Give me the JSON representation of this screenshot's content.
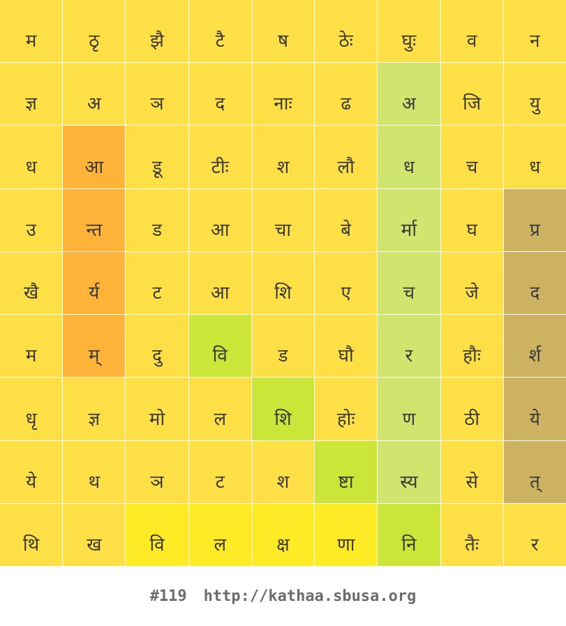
{
  "colors": {
    "y": "#ffdf46",
    "o": "#ffb338",
    "lg": "#cfe56d",
    "lime": "#cbe538",
    "tan": "#cdb262",
    "yb": "#feeb25"
  },
  "grid": [
    [
      {
        "t": "म",
        "c": "y"
      },
      {
        "t": "ठृ",
        "c": "y"
      },
      {
        "t": "झै",
        "c": "y"
      },
      {
        "t": "टै",
        "c": "y"
      },
      {
        "t": "ष",
        "c": "y"
      },
      {
        "t": "ठेः",
        "c": "y"
      },
      {
        "t": "घुः",
        "c": "y"
      },
      {
        "t": "व",
        "c": "y"
      },
      {
        "t": "न",
        "c": "y"
      }
    ],
    [
      {
        "t": "ज्ञ",
        "c": "y"
      },
      {
        "t": "अ",
        "c": "y"
      },
      {
        "t": "ञ",
        "c": "y"
      },
      {
        "t": "द",
        "c": "y"
      },
      {
        "t": "नाः",
        "c": "y"
      },
      {
        "t": "ढ",
        "c": "y"
      },
      {
        "t": "अ",
        "c": "lg"
      },
      {
        "t": "जि",
        "c": "y"
      },
      {
        "t": "यु",
        "c": "y"
      }
    ],
    [
      {
        "t": "ध",
        "c": "y"
      },
      {
        "t": "आ",
        "c": "o"
      },
      {
        "t": "डू",
        "c": "y"
      },
      {
        "t": "टीः",
        "c": "y"
      },
      {
        "t": "श",
        "c": "y"
      },
      {
        "t": "लौ",
        "c": "y"
      },
      {
        "t": "ध",
        "c": "lg"
      },
      {
        "t": "च",
        "c": "y"
      },
      {
        "t": "ध",
        "c": "y"
      }
    ],
    [
      {
        "t": "उ",
        "c": "y"
      },
      {
        "t": "न्त",
        "c": "o"
      },
      {
        "t": "ड",
        "c": "y"
      },
      {
        "t": "आ",
        "c": "y"
      },
      {
        "t": "चा",
        "c": "y"
      },
      {
        "t": "बे",
        "c": "y"
      },
      {
        "t": "र्मा",
        "c": "lg"
      },
      {
        "t": "घ",
        "c": "y"
      },
      {
        "t": "प्र",
        "c": "tan"
      }
    ],
    [
      {
        "t": "खै",
        "c": "y"
      },
      {
        "t": "र्य",
        "c": "o"
      },
      {
        "t": "ट",
        "c": "y"
      },
      {
        "t": "आ",
        "c": "y"
      },
      {
        "t": "शि",
        "c": "y"
      },
      {
        "t": "ए",
        "c": "y"
      },
      {
        "t": "च",
        "c": "lg"
      },
      {
        "t": "जे",
        "c": "y"
      },
      {
        "t": "द",
        "c": "tan"
      }
    ],
    [
      {
        "t": "म",
        "c": "y"
      },
      {
        "t": "म्",
        "c": "o"
      },
      {
        "t": "दु",
        "c": "y"
      },
      {
        "t": "वि",
        "c": "lime"
      },
      {
        "t": "ड",
        "c": "y"
      },
      {
        "t": "घौ",
        "c": "y"
      },
      {
        "t": "र",
        "c": "lg"
      },
      {
        "t": "हौः",
        "c": "y"
      },
      {
        "t": "र्श",
        "c": "tan"
      }
    ],
    [
      {
        "t": "धृ",
        "c": "y"
      },
      {
        "t": "ज्ञ",
        "c": "y"
      },
      {
        "t": "मो",
        "c": "y"
      },
      {
        "t": "ल",
        "c": "y"
      },
      {
        "t": "शि",
        "c": "lime"
      },
      {
        "t": "होः",
        "c": "y"
      },
      {
        "t": "ण",
        "c": "lg"
      },
      {
        "t": "ठी",
        "c": "y"
      },
      {
        "t": "ये",
        "c": "tan"
      }
    ],
    [
      {
        "t": "ये",
        "c": "y"
      },
      {
        "t": "थ",
        "c": "y"
      },
      {
        "t": "ञ",
        "c": "y"
      },
      {
        "t": "ट",
        "c": "y"
      },
      {
        "t": "श",
        "c": "y"
      },
      {
        "t": "ष्टा",
        "c": "lime"
      },
      {
        "t": "स्य",
        "c": "lg"
      },
      {
        "t": "से",
        "c": "y"
      },
      {
        "t": "त्",
        "c": "tan"
      }
    ],
    [
      {
        "t": "थि",
        "c": "y"
      },
      {
        "t": "ख",
        "c": "y"
      },
      {
        "t": "वि",
        "c": "yb"
      },
      {
        "t": "ल",
        "c": "yb"
      },
      {
        "t": "क्ष",
        "c": "yb"
      },
      {
        "t": "णा",
        "c": "yb"
      },
      {
        "t": "नि",
        "c": "lime"
      },
      {
        "t": "तैः",
        "c": "y"
      },
      {
        "t": "र",
        "c": "y"
      }
    ]
  ],
  "footer": {
    "puzzle_number": "#119",
    "url": "http://kathaa.sbusa.org"
  }
}
